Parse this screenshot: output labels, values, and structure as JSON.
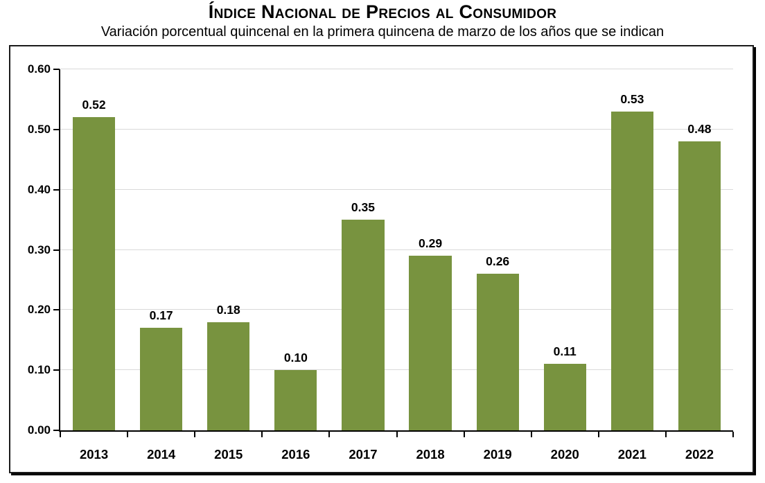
{
  "title": "Índice Nacional de Precios al Consumidor",
  "subtitle": "Variación porcentual quincenal en la primera quincena de marzo de los años que se indican",
  "chart_data": {
    "type": "bar",
    "title": "Índice Nacional de Precios al Consumidor",
    "subtitle": "Variación porcentual quincenal en la primera quincena de marzo de los años que se indican",
    "categories": [
      "2013",
      "2014",
      "2015",
      "2016",
      "2017",
      "2018",
      "2019",
      "2020",
      "2021",
      "2022"
    ],
    "values": [
      0.52,
      0.17,
      0.18,
      0.1,
      0.35,
      0.29,
      0.26,
      0.11,
      0.53,
      0.48
    ],
    "value_labels": [
      "0.52",
      "0.17",
      "0.18",
      "0.10",
      "0.35",
      "0.29",
      "0.26",
      "0.11",
      "0.53",
      "0.48"
    ],
    "xlabel": "",
    "ylabel": "",
    "ylim": [
      0.0,
      0.6
    ],
    "ytick_labels": [
      "0.00",
      "0.10",
      "0.20",
      "0.30",
      "0.40",
      "0.50",
      "0.60"
    ],
    "grid": "horizontal",
    "legend": "none",
    "bar_color": "#78933F",
    "gridline_color": "#D9D9D9",
    "axis_color": "#000000"
  }
}
